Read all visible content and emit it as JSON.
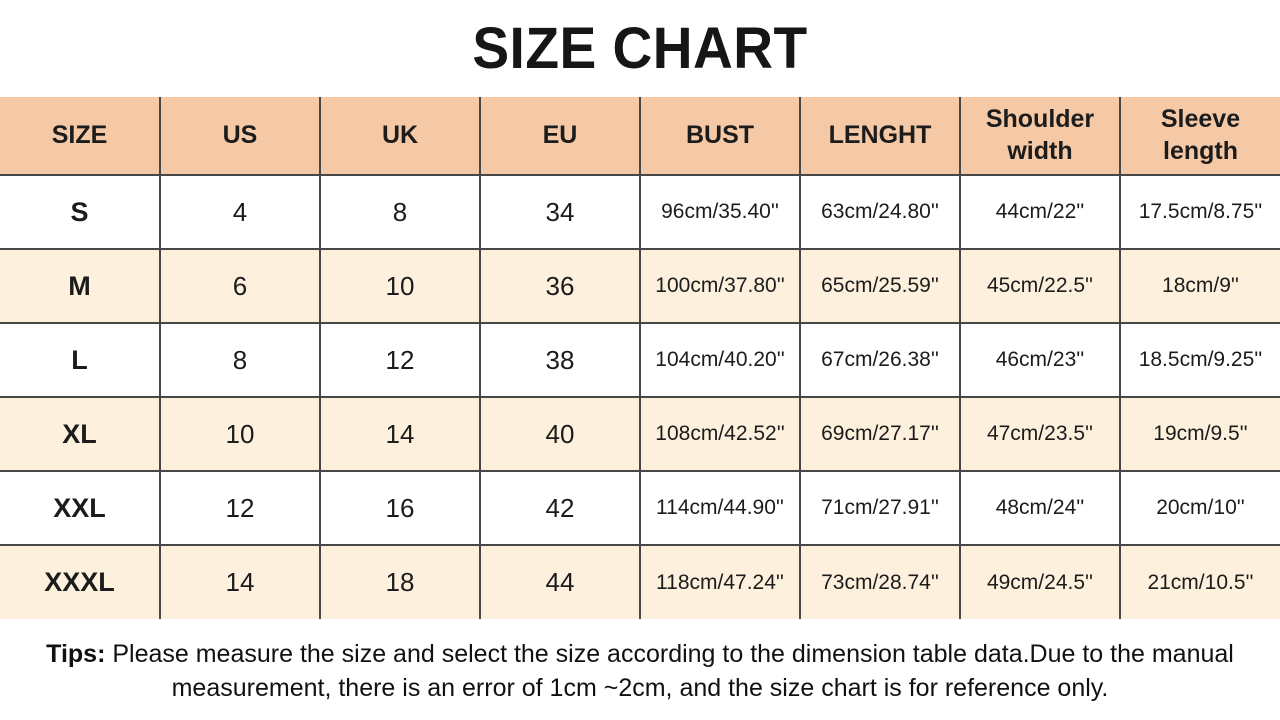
{
  "title": "SIZE CHART",
  "table": {
    "columns": [
      "SIZE",
      "US",
      "UK",
      "EU",
      "BUST",
      "LENGHT",
      "Shoulder width",
      "Sleeve length"
    ],
    "rows": [
      {
        "cells": [
          "S",
          "4",
          "8",
          "34",
          "96cm/35.40''",
          "63cm/24.80''",
          "44cm/22''",
          "17.5cm/8.75''"
        ]
      },
      {
        "cells": [
          "M",
          "6",
          "10",
          "36",
          "100cm/37.80''",
          "65cm/25.59''",
          "45cm/22.5''",
          "18cm/9''"
        ]
      },
      {
        "cells": [
          "L",
          "8",
          "12",
          "38",
          "104cm/40.20''",
          "67cm/26.38''",
          "46cm/23''",
          "18.5cm/9.25''"
        ]
      },
      {
        "cells": [
          "XL",
          "10",
          "14",
          "40",
          "108cm/42.52''",
          "69cm/27.17''",
          "47cm/23.5''",
          "19cm/9.5''"
        ]
      },
      {
        "cells": [
          "XXL",
          "12",
          "16",
          "42",
          "114cm/44.90''",
          "71cm/27.91''",
          "48cm/24''",
          "20cm/10''"
        ]
      },
      {
        "cells": [
          "XXXL",
          "14",
          "18",
          "44",
          "118cm/47.24''",
          "73cm/28.74''",
          "49cm/24.5''",
          "21cm/10.5''"
        ]
      }
    ]
  },
  "tips": {
    "label": "Tips:",
    "text": "Please measure the size and select the size according to the dimension table data.Due to the manual measurement, there is an error of 1cm ~2cm, and the size chart is for reference only."
  },
  "colors": {
    "header_bg": "#f6c9a6",
    "alt_row_bg": "#fdf0dc",
    "grid_border": "#474747",
    "text": "#1c1c1c"
  }
}
